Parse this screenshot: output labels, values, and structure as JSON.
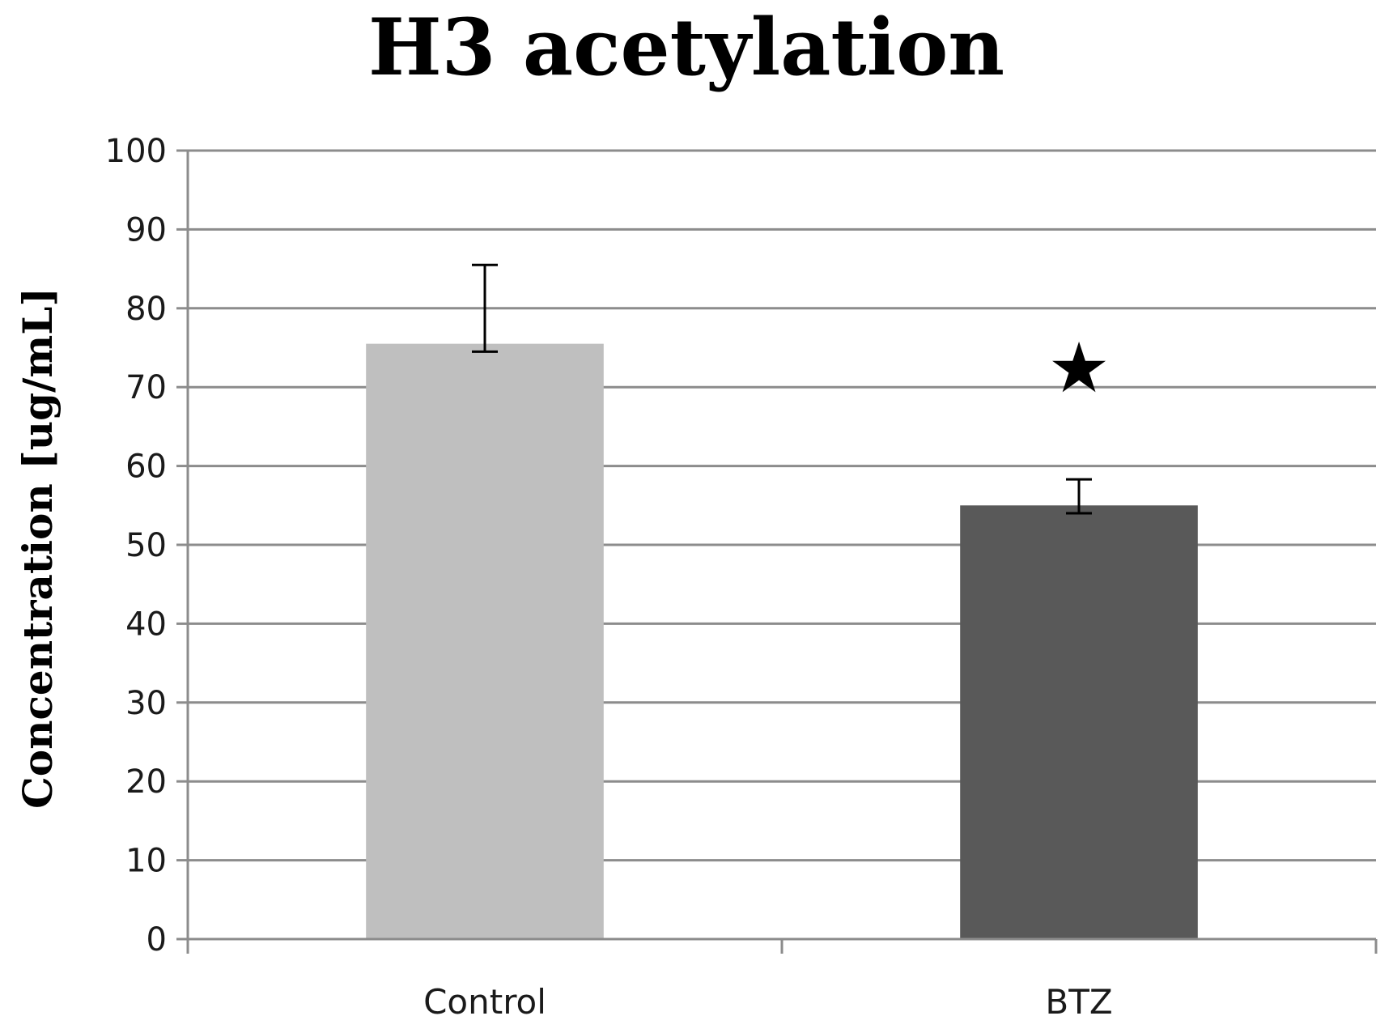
{
  "chart_data": {
    "type": "bar",
    "title": "H3 acetylation",
    "ylabel": "Concentration  [ug/mL]",
    "xlabel": "",
    "categories": [
      "Control",
      "BTZ"
    ],
    "values": [
      75.5,
      55.0
    ],
    "error_upper": [
      85.5,
      58.3
    ],
    "error_lower": [
      74.5,
      54.0
    ],
    "bar_colors": [
      "#bfbfbf",
      "#595959"
    ],
    "ylim": [
      0,
      100
    ],
    "yticks": [
      0,
      10,
      20,
      30,
      40,
      50,
      60,
      70,
      80,
      90,
      100
    ],
    "grid": true,
    "annotations": [
      {
        "category": "BTZ",
        "text": "★",
        "y": 72.5
      }
    ]
  }
}
